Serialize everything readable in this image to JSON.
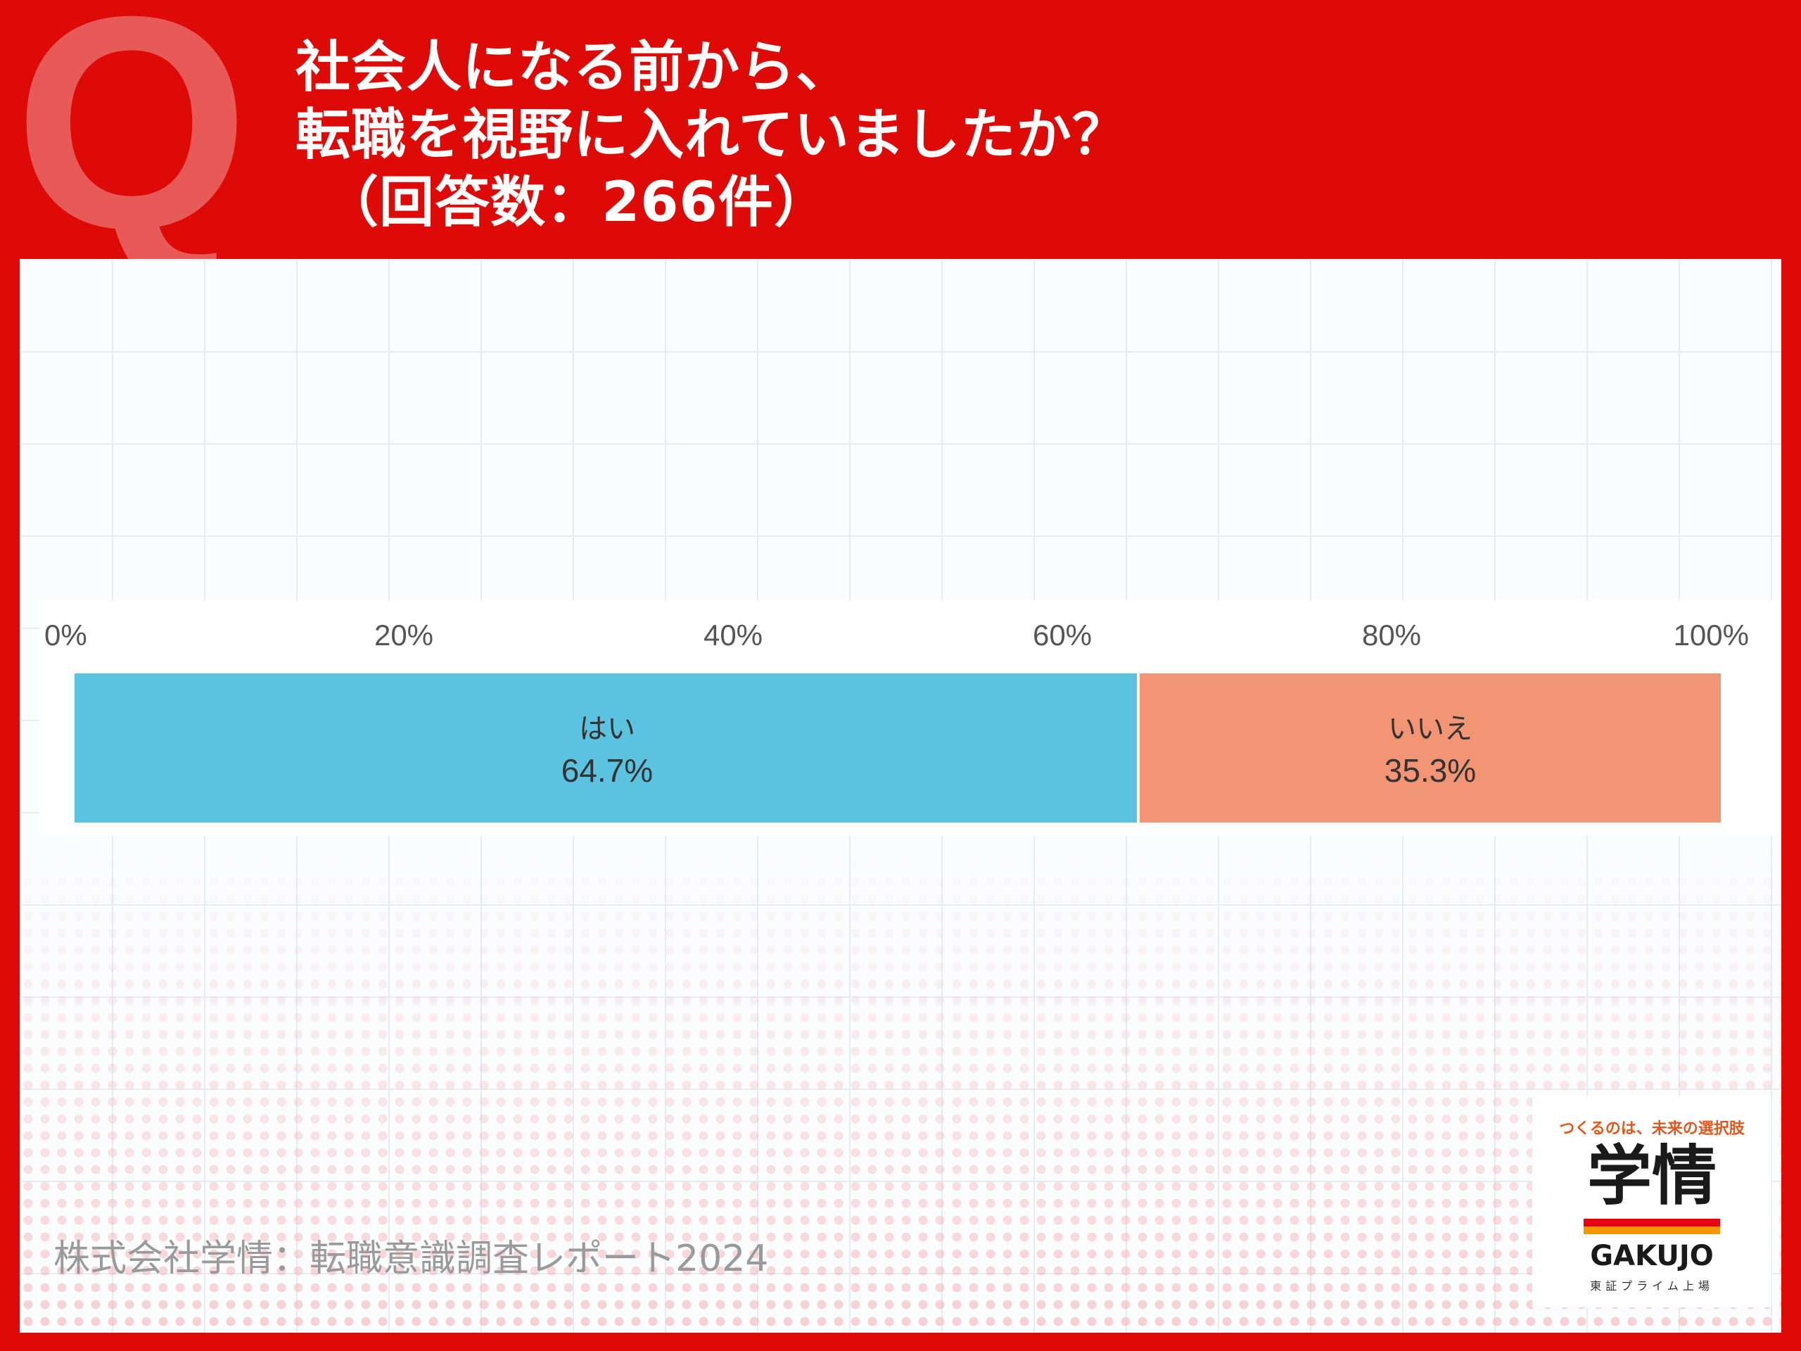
{
  "header": {
    "q_mark": "Q",
    "title_line1": "社会人になる前から、",
    "title_line2": "転職を視野に入れていましたか？",
    "title_line3": "（回答数：266件）"
  },
  "source": "株式会社学情：転職意識調査レポート2024",
  "logo": {
    "tagline": "つくるのは、未来の選択肢",
    "brand_jp": "学情",
    "brand_en": "GAKUJO",
    "listing": "東証プライム上場"
  },
  "colors": {
    "background": "#dd0a07",
    "yes": "#5bc3e0",
    "no": "#f29574"
  },
  "chart_data": {
    "type": "bar",
    "orientation": "horizontal-stacked-100",
    "title": "社会人になる前から、転職を視野に入れていましたか？（回答数：266件）",
    "x_ticks": [
      "0%",
      "20%",
      "40%",
      "60%",
      "80%",
      "100%"
    ],
    "xlim": [
      0,
      100
    ],
    "series": [
      {
        "name": "はい",
        "value": 64.7,
        "label": "64.7%",
        "color": "#5bc3e0"
      },
      {
        "name": "いいえ",
        "value": 35.3,
        "label": "35.3%",
        "color": "#f29574"
      }
    ]
  }
}
